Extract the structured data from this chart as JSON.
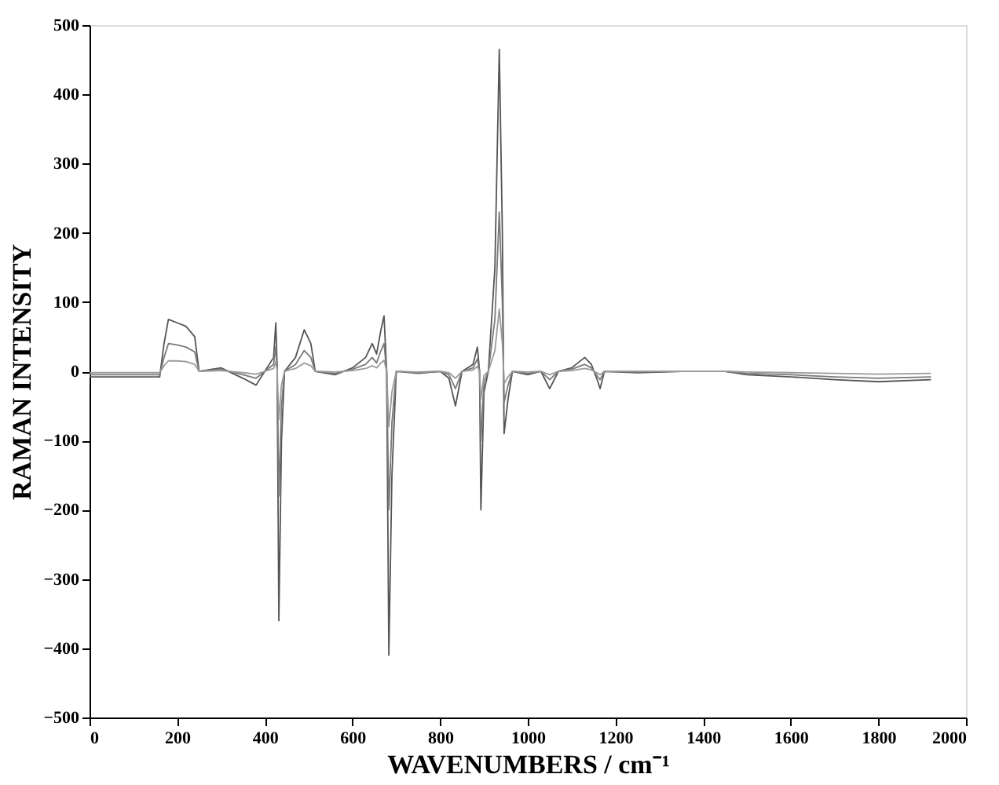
{
  "chart_data": {
    "type": "line",
    "xlabel": "WAVENUMBERS / cm⁻¹",
    "ylabel": "RAMAN INTENSITY",
    "x": [
      0,
      160,
      170,
      180,
      200,
      220,
      240,
      250,
      300,
      350,
      380,
      400,
      420,
      425,
      428,
      432,
      438,
      445,
      470,
      490,
      505,
      515,
      560,
      600,
      630,
      645,
      655,
      665,
      672,
      678,
      683,
      690,
      700,
      750,
      800,
      820,
      835,
      850,
      875,
      885,
      890,
      893,
      900,
      910,
      925,
      935,
      942,
      946,
      955,
      965,
      1000,
      1030,
      1050,
      1070,
      1100,
      1130,
      1145,
      1160,
      1165,
      1175,
      1250,
      1350,
      1450,
      1500,
      1600,
      1700,
      1800,
      1920
    ],
    "series": [
      {
        "color": "#555555",
        "values": [
          -8,
          -8,
          40,
          75,
          70,
          65,
          50,
          0,
          5,
          -10,
          -20,
          0,
          20,
          70,
          10,
          -360,
          -100,
          0,
          20,
          60,
          40,
          0,
          -5,
          5,
          20,
          40,
          25,
          60,
          80,
          0,
          -410,
          -150,
          0,
          -3,
          0,
          -10,
          -50,
          0,
          10,
          35,
          0,
          -200,
          -30,
          0,
          150,
          465,
          200,
          -90,
          -40,
          0,
          -5,
          0,
          -25,
          0,
          5,
          20,
          10,
          -15,
          -25,
          0,
          -2,
          0,
          0,
          -5,
          -8,
          -12,
          -15,
          -12
        ]
      },
      {
        "color": "#7a7a7a",
        "values": [
          -5,
          -5,
          20,
          40,
          38,
          35,
          28,
          0,
          3,
          -5,
          -10,
          0,
          10,
          35,
          5,
          -180,
          -50,
          0,
          10,
          30,
          20,
          0,
          -3,
          3,
          10,
          20,
          12,
          30,
          40,
          0,
          -200,
          -75,
          0,
          -2,
          0,
          -5,
          -25,
          0,
          5,
          18,
          0,
          -100,
          -15,
          0,
          75,
          230,
          100,
          -45,
          -20,
          0,
          -3,
          0,
          -12,
          0,
          3,
          10,
          5,
          -8,
          -12,
          0,
          -1,
          0,
          0,
          -3,
          -5,
          -8,
          -10,
          -8
        ]
      },
      {
        "color": "#9a9a9a",
        "values": [
          -2,
          -2,
          8,
          15,
          15,
          14,
          10,
          0,
          1,
          -2,
          -4,
          0,
          4,
          14,
          2,
          -70,
          -20,
          0,
          4,
          12,
          8,
          0,
          -1,
          1,
          4,
          8,
          5,
          12,
          16,
          0,
          -80,
          -30,
          0,
          -1,
          0,
          -2,
          -10,
          0,
          2,
          7,
          0,
          -40,
          -6,
          0,
          30,
          90,
          40,
          -18,
          -8,
          0,
          -1,
          0,
          -5,
          0,
          1,
          4,
          2,
          -3,
          -5,
          0,
          0,
          0,
          0,
          -1,
          -2,
          -3,
          -4,
          -3
        ]
      }
    ],
    "xlim": [
      0,
      2000
    ],
    "xticks": [
      0,
      200,
      400,
      600,
      800,
      1000,
      1200,
      1400,
      1600,
      1800,
      2000
    ],
    "ylim": [
      -500,
      500
    ],
    "yticks": [
      -500,
      -400,
      -300,
      -200,
      -100,
      0,
      100,
      200,
      300,
      400,
      500
    ],
    "grid": false,
    "marker": "none",
    "line_style": "solid"
  }
}
